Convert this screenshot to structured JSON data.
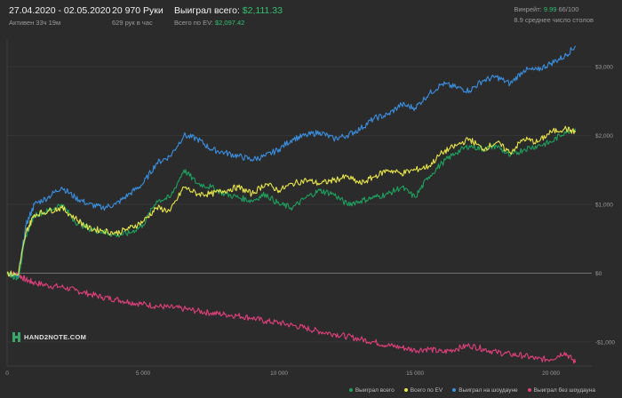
{
  "header": {
    "date_range": "27.04.2020 - 02.05.2020",
    "active_time": "Активен 33ч 19м",
    "hands": "20 970 Руки",
    "hands_per_hour": "629 рук в час",
    "won_total_label": "Выиграл всего:",
    "won_total_value": "$2,111.33",
    "ev_total_label": "Всего по EV:",
    "ev_total_value": "$2,097.42",
    "winrate_label": "Винрейт:",
    "winrate_value": "9.99",
    "winrate_unit": "66/100",
    "avg_tables": "8.9 среднее число столов"
  },
  "logo_text": "HAND2NOTE.COM",
  "colors": {
    "won_total": "#1fa15e",
    "ev_total": "#e8e64a",
    "showdown": "#3b8fe0",
    "non_showdown": "#e0407a",
    "zero_line": "#8a8a8a",
    "grid": "#3a3a3a"
  },
  "chart_data": {
    "type": "line",
    "xlim": [
      0,
      21500
    ],
    "ylim": [
      -1350,
      3400
    ],
    "x_ticks": [
      0,
      5000,
      10000,
      15000,
      20000
    ],
    "x_tick_labels": [
      "0",
      "5 000",
      "10 000",
      "15 000",
      "20 000"
    ],
    "y_ticks": [
      -1000,
      0,
      1000,
      2000,
      3000
    ],
    "y_tick_labels": [
      "-$1,000",
      "$0",
      "$1,000",
      "$2,000",
      "$3,000"
    ],
    "grid": "horizontal",
    "legend_position": "bottom-right",
    "series": [
      {
        "name": "Выиграл всего",
        "color_key": "won_total",
        "x": [
          0,
          400,
          700,
          1000,
          1500,
          2000,
          2500,
          3000,
          3500,
          4000,
          4500,
          5000,
          5500,
          6000,
          6500,
          7000,
          7500,
          8000,
          8500,
          9000,
          9500,
          10000,
          10500,
          11000,
          11500,
          12000,
          12500,
          13000,
          13500,
          14000,
          14500,
          15000,
          15500,
          16000,
          16500,
          17000,
          17500,
          18000,
          18500,
          19000,
          19500,
          20000,
          20500,
          20900
        ],
        "y": [
          0,
          -80,
          550,
          850,
          900,
          1000,
          750,
          650,
          600,
          550,
          580,
          700,
          1050,
          1100,
          1500,
          1300,
          1250,
          1150,
          1100,
          1050,
          1150,
          1000,
          950,
          1100,
          1200,
          1150,
          1000,
          1050,
          1100,
          1150,
          1250,
          1100,
          1400,
          1600,
          1750,
          1850,
          1800,
          1850,
          1700,
          1800,
          1850,
          1900,
          2050,
          2100
        ]
      },
      {
        "name": "Всего по EV",
        "color_key": "ev_total",
        "x": [
          0,
          400,
          700,
          1000,
          1500,
          2000,
          2500,
          3000,
          3500,
          4000,
          4500,
          5000,
          5500,
          6000,
          6500,
          7000,
          7500,
          8000,
          8500,
          9000,
          9500,
          10000,
          10500,
          11000,
          11500,
          12000,
          12500,
          13000,
          13500,
          14000,
          14500,
          15000,
          15500,
          16000,
          16500,
          17000,
          17500,
          18000,
          18500,
          19000,
          19500,
          20000,
          20500,
          20900
        ],
        "y": [
          0,
          -30,
          600,
          850,
          900,
          950,
          800,
          650,
          620,
          580,
          650,
          750,
          950,
          900,
          1250,
          1150,
          1150,
          1200,
          1250,
          1150,
          1300,
          1200,
          1300,
          1350,
          1300,
          1350,
          1400,
          1300,
          1400,
          1500,
          1450,
          1500,
          1550,
          1750,
          1850,
          1950,
          1800,
          1900,
          1750,
          1950,
          1900,
          2050,
          2100,
          2050
        ]
      },
      {
        "name": "Выиграл на шоудауне",
        "color_key": "showdown",
        "x": [
          0,
          400,
          700,
          1000,
          1500,
          2000,
          2500,
          3000,
          3500,
          4000,
          4500,
          5000,
          5500,
          6000,
          6500,
          7000,
          7500,
          8000,
          8500,
          9000,
          9500,
          10000,
          10500,
          11000,
          11500,
          12000,
          12500,
          13000,
          13500,
          14000,
          14500,
          15000,
          15500,
          16000,
          16500,
          17000,
          17500,
          18000,
          18500,
          19000,
          19500,
          20000,
          20500,
          20900
        ],
        "y": [
          0,
          -50,
          700,
          1000,
          1100,
          1250,
          1100,
          1000,
          950,
          1000,
          1150,
          1300,
          1600,
          1700,
          2000,
          1950,
          1800,
          1750,
          1700,
          1650,
          1700,
          1800,
          1950,
          2000,
          2050,
          1950,
          2000,
          2100,
          2250,
          2300,
          2450,
          2400,
          2600,
          2750,
          2700,
          2650,
          2800,
          2850,
          2750,
          2950,
          2950,
          3050,
          3150,
          3300
        ]
      },
      {
        "name": "Выиграл без шоудауна",
        "color_key": "non_showdown",
        "x": [
          0,
          400,
          700,
          1000,
          1500,
          2000,
          2500,
          3000,
          3500,
          4000,
          4500,
          5000,
          5500,
          6000,
          6500,
          7000,
          7500,
          8000,
          8500,
          9000,
          9500,
          10000,
          10500,
          11000,
          11500,
          12000,
          12500,
          13000,
          13500,
          14000,
          14500,
          15000,
          15500,
          16000,
          16500,
          17000,
          17500,
          18000,
          18500,
          19000,
          19500,
          20000,
          20500,
          20900
        ],
        "y": [
          0,
          -20,
          -100,
          -140,
          -180,
          -200,
          -250,
          -300,
          -350,
          -380,
          -420,
          -450,
          -480,
          -500,
          -520,
          -550,
          -580,
          -600,
          -620,
          -650,
          -700,
          -720,
          -760,
          -800,
          -850,
          -880,
          -920,
          -960,
          -1000,
          -1050,
          -1080,
          -1120,
          -1100,
          -1150,
          -1100,
          -1050,
          -1100,
          -1150,
          -1180,
          -1200,
          -1250,
          -1250,
          -1150,
          -1300
        ]
      }
    ]
  }
}
